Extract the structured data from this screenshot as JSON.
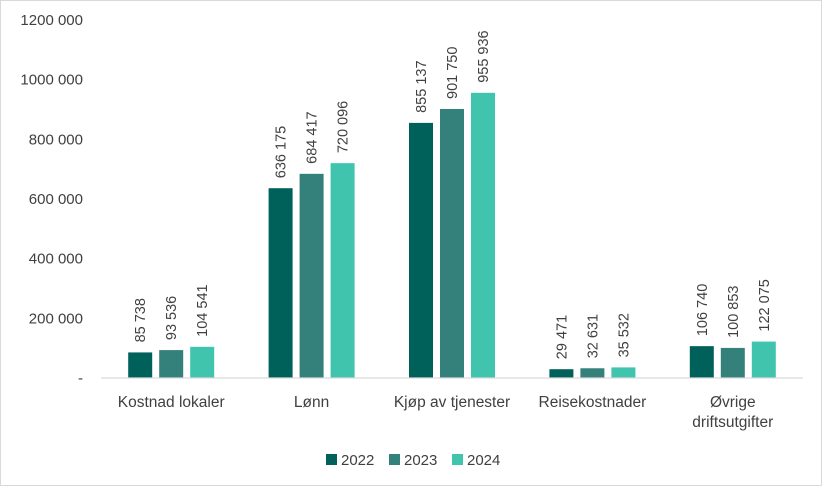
{
  "chart_data": {
    "type": "bar",
    "categories": [
      "Kostnad lokaler",
      "Lønn",
      "Kjøp av tjenester",
      "Reisekostnader",
      "Øvrige driftsutgifter"
    ],
    "category_lines": [
      [
        "Kostnad lokaler"
      ],
      [
        "Lønn"
      ],
      [
        "Kjøp av tjenester"
      ],
      [
        "Reisekostnader"
      ],
      [
        "Øvrige",
        "driftsutgifter"
      ]
    ],
    "series": [
      {
        "name": "2022",
        "color": "#00605A",
        "values": [
          85738,
          636175,
          855137,
          29471,
          106740
        ],
        "labels": [
          "85 738",
          "636 175",
          "855 137",
          "29 471",
          "106 740"
        ]
      },
      {
        "name": "2023",
        "color": "#34807B",
        "values": [
          93536,
          684417,
          901750,
          32631,
          100853
        ],
        "labels": [
          "93 536",
          "684 417",
          "901 750",
          "32 631",
          "100 853"
        ]
      },
      {
        "name": "2024",
        "color": "#40C4AE",
        "values": [
          104541,
          720096,
          955936,
          35532,
          122075
        ],
        "labels": [
          "104 541",
          "720 096",
          "955 936",
          "35 532",
          "122 075"
        ]
      }
    ],
    "ylim": [
      0,
      1200000
    ],
    "yticks": [
      {
        "value": 0,
        "label": "-"
      },
      {
        "value": 200000,
        "label": "200 000"
      },
      {
        "value": 400000,
        "label": "400 000"
      },
      {
        "value": 600000,
        "label": "600 000"
      },
      {
        "value": 800000,
        "label": "800 000"
      },
      {
        "value": 1000000,
        "label": "1000 000"
      },
      {
        "value": 1200000,
        "label": "1200 000"
      }
    ],
    "grid": false,
    "legend": "bottom-center",
    "axis_color": "#d9d9d9"
  }
}
